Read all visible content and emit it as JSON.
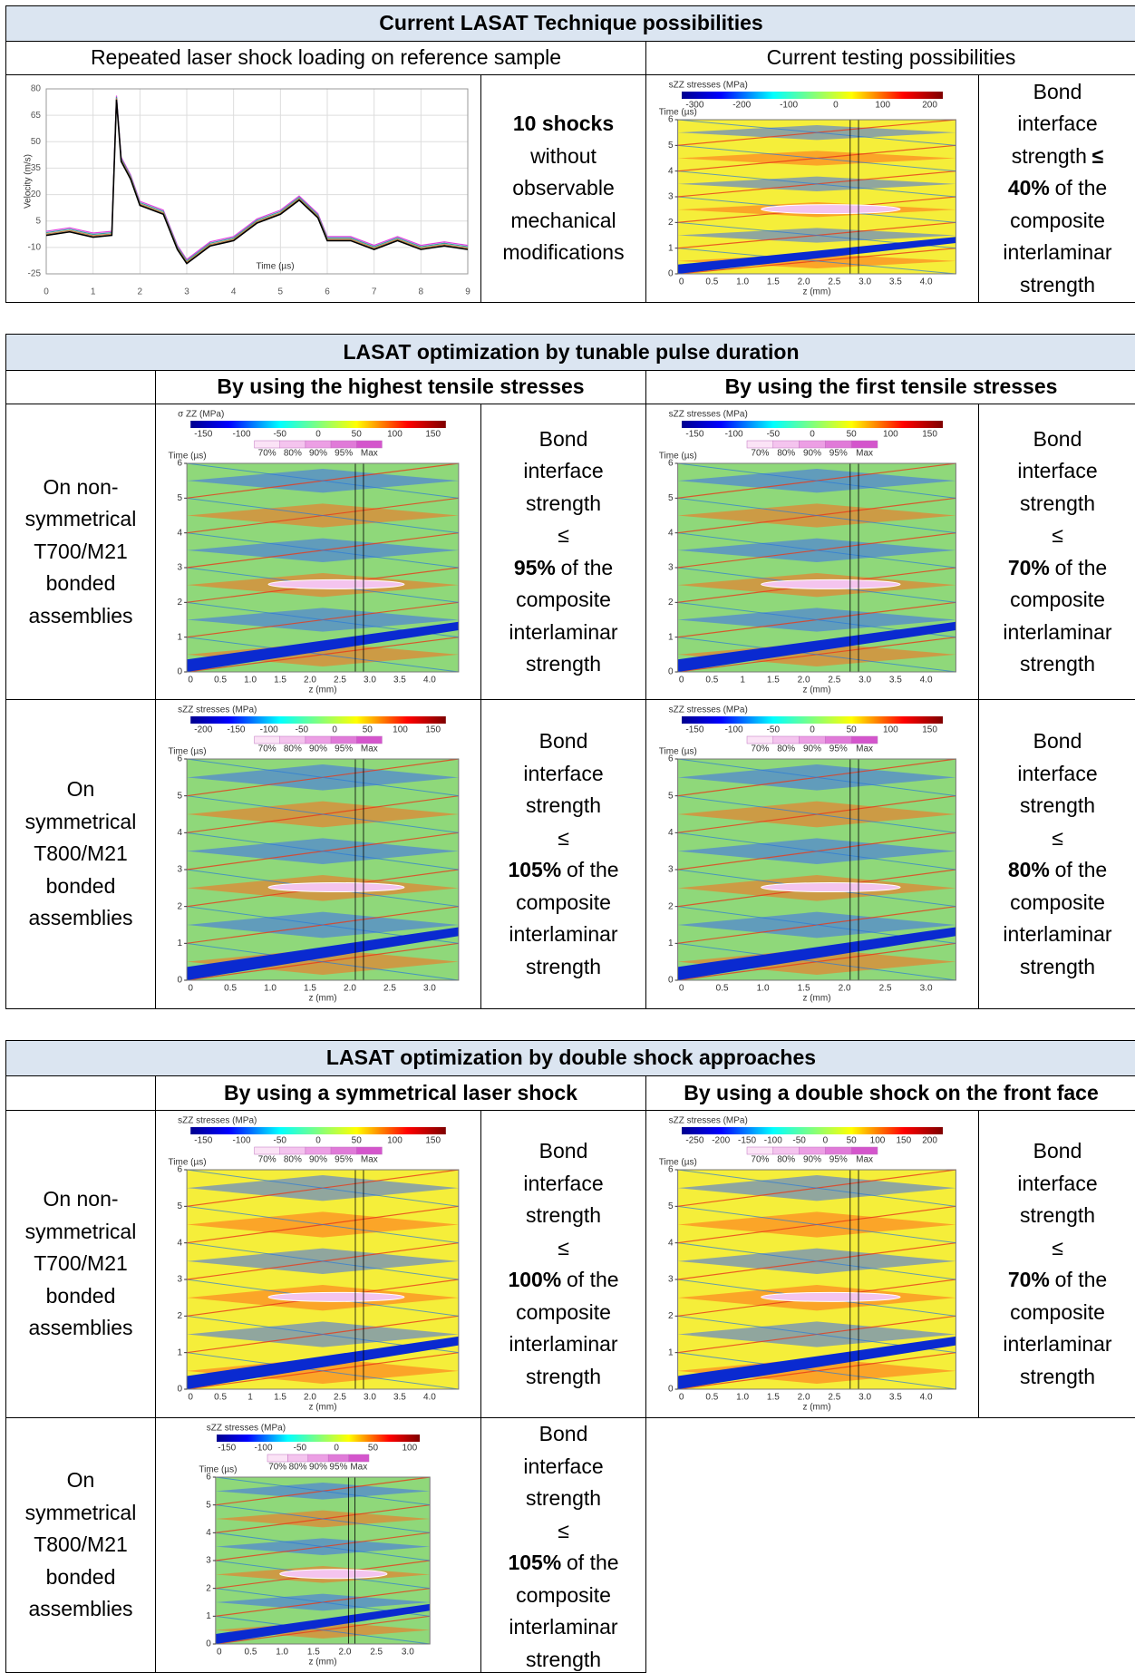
{
  "t1": {
    "title": "Current LASAT Technique possibilities",
    "left_heading": "Repeated laser shock loading on reference sample",
    "right_heading": "Current testing possibilities",
    "velocity_plot": {
      "y_label": "Velocity (m/s)",
      "x_label": "Time (µs)",
      "ylim": [
        -25,
        80
      ],
      "xlim": [
        0,
        9
      ],
      "yticks": [
        80,
        65,
        50,
        35,
        20,
        5,
        -10,
        -25
      ],
      "xticks": [
        0,
        1,
        2,
        3,
        4,
        5,
        6,
        7,
        8,
        9
      ],
      "x": [
        0,
        0.5,
        1,
        1.4,
        1.5,
        1.6,
        1.8,
        2,
        2.5,
        2.8,
        3,
        3.5,
        4,
        4.5,
        5,
        5.4,
        5.8,
        6,
        6.5,
        7,
        7.5,
        8,
        8.5,
        9
      ],
      "values": [
        -2,
        0,
        -3,
        -2,
        75,
        40,
        30,
        15,
        10,
        -10,
        -18,
        -8,
        -5,
        5,
        10,
        18,
        8,
        -5,
        -5,
        -10,
        -5,
        -10,
        -8,
        -10
      ]
    },
    "result": [
      [
        {
          "bold": "10 shocks"
        }
      ],
      [
        "without"
      ],
      [
        "observable"
      ],
      [
        "mechanical"
      ],
      [
        "modifications"
      ]
    ],
    "stress_plot": {
      "cbar_title": "sZZ stresses (MPa)",
      "cbar_ticks": [
        "-300",
        "-200",
        "-100",
        "0",
        "100",
        "200"
      ],
      "y_label": "Time (µs)",
      "yticks": [
        0,
        1,
        2,
        3,
        4,
        5,
        6
      ],
      "x_label": "z (mm)",
      "xticks": [
        "0",
        "0.5",
        "1.0",
        "1.5",
        "2.0",
        "2.5",
        "3.0",
        "3.5",
        "4.0"
      ]
    },
    "strength": [
      [
        "Bond"
      ],
      [
        "interface"
      ],
      [
        "strength",
        {
          "bold": "≤"
        }
      ],
      [
        {
          "bold": "40%"
        },
        "of the"
      ],
      [
        "composite"
      ],
      [
        "interlaminar"
      ],
      [
        "strength"
      ]
    ]
  },
  "t2": {
    "title": "LASAT optimization by tunable pulse duration",
    "col1": "By using the highest tensile stresses",
    "col2": "By using the first tensile stresses",
    "rows": [
      {
        "label": [
          [
            "On non-"
          ],
          [
            "symmetrical"
          ],
          [
            "T700/M21"
          ],
          [
            "bonded"
          ],
          [
            "assemblies"
          ]
        ],
        "plot1": {
          "cbar_title": "σ ZZ (MPa)",
          "cbar_ticks": [
            "-150",
            "-100",
            "-50",
            "0",
            "50",
            "100",
            "150"
          ],
          "pct": [
            "70%",
            "80%",
            "90%",
            "95%",
            "Max"
          ],
          "y_label": "Time (µs)",
          "yticks": [
            0,
            1,
            2,
            3,
            4,
            5,
            6
          ],
          "x_label": "z (mm)",
          "xticks": [
            "0",
            "0.5",
            "1.0",
            "1.5",
            "2.0",
            "2.5",
            "3.0",
            "3.5",
            "4.0"
          ]
        },
        "text1": [
          [
            "Bond"
          ],
          [
            "interface"
          ],
          [
            "strength"
          ],
          [
            "≤"
          ],
          [
            {
              "bold": "95%"
            },
            "of the"
          ],
          [
            "composite"
          ],
          [
            "interlaminar"
          ],
          [
            "strength"
          ]
        ],
        "plot2": {
          "cbar_title": "sZZ stresses (MPa)",
          "cbar_ticks": [
            "-150",
            "-100",
            "-50",
            "0",
            "50",
            "100",
            "150"
          ],
          "pct": [
            "70%",
            "80%",
            "90%",
            "95%",
            "Max"
          ],
          "y_label": "Time (µs)",
          "yticks": [
            0,
            1,
            2,
            3,
            4,
            5,
            6
          ],
          "x_label": "z (mm)",
          "xticks": [
            "0",
            "0.5",
            "1",
            "1.5",
            "2.0",
            "2.5",
            "3.0",
            "3.5",
            "4.0"
          ]
        },
        "text2": [
          [
            "Bond"
          ],
          [
            "interface"
          ],
          [
            "strength"
          ],
          [
            "≤"
          ],
          [
            {
              "bold": "70%"
            },
            "of the"
          ],
          [
            "composite"
          ],
          [
            "interlaminar"
          ],
          [
            "strength"
          ]
        ]
      },
      {
        "label": [
          [
            "On"
          ],
          [
            "symmetrical"
          ],
          [
            "T800/M21"
          ],
          [
            "bonded"
          ],
          [
            "assemblies"
          ]
        ],
        "plot1": {
          "cbar_title": "sZZ stresses (MPa)",
          "cbar_ticks": [
            "-200",
            "-150",
            "-100",
            "-50",
            "0",
            "50",
            "100",
            "150"
          ],
          "pct": [
            "70%",
            "80%",
            "90%",
            "95%",
            "Max"
          ],
          "y_label": "Time (µs)",
          "yticks": [
            0,
            1,
            2,
            3,
            4,
            5,
            6
          ],
          "x_label": "z (mm)",
          "xticks": [
            "0",
            "0.5",
            "1.0",
            "1.5",
            "2.0",
            "2.5",
            "3.0"
          ]
        },
        "text1": [
          [
            "Bond"
          ],
          [
            "interface"
          ],
          [
            "strength"
          ],
          [
            "≤"
          ],
          [
            {
              "bold": "105%"
            },
            "of the"
          ],
          [
            "composite"
          ],
          [
            "interlaminar"
          ],
          [
            "strength"
          ]
        ],
        "plot2": {
          "cbar_title": "sZZ stresses (MPa)",
          "cbar_ticks": [
            "-150",
            "-100",
            "-50",
            "0",
            "50",
            "100",
            "150"
          ],
          "pct": [
            "70%",
            "80%",
            "90%",
            "95%",
            "Max"
          ],
          "y_label": "Time (µs)",
          "yticks": [
            0,
            1,
            2,
            3,
            4,
            5,
            6
          ],
          "x_label": "z (mm)",
          "xticks": [
            "0",
            "0.5",
            "1.0",
            "1.5",
            "2.0",
            "2.5",
            "3.0"
          ]
        },
        "text2": [
          [
            "Bond"
          ],
          [
            "interface"
          ],
          [
            "strength"
          ],
          [
            "≤"
          ],
          [
            {
              "bold": "80%"
            },
            "of the"
          ],
          [
            "composite"
          ],
          [
            "interlaminar"
          ],
          [
            "strength"
          ]
        ]
      }
    ]
  },
  "t3": {
    "title": "LASAT optimization by double shock approaches",
    "col1": "By using a symmetrical laser shock",
    "col2": "By using a double shock on the front face",
    "rows": [
      {
        "label": [
          [
            "On non-"
          ],
          [
            "symmetrical"
          ],
          [
            "T700/M21"
          ],
          [
            "bonded"
          ],
          [
            "assemblies"
          ]
        ],
        "plot1": {
          "cbar_title": "sZZ stresses (MPa)",
          "cbar_ticks": [
            "-150",
            "-100",
            "-50",
            "0",
            "50",
            "100",
            "150"
          ],
          "pct": [
            "70%",
            "80%",
            "90%",
            "95%",
            "Max"
          ],
          "y_label": "Time (µs)",
          "yticks": [
            0,
            1,
            2,
            3,
            4,
            5,
            6
          ],
          "x_label": "z (mm)",
          "xticks": [
            "0",
            "0.5",
            "1",
            "1.5",
            "2.0",
            "2.5",
            "3.0",
            "3.5",
            "4.0"
          ]
        },
        "text1": [
          [
            "Bond"
          ],
          [
            "interface"
          ],
          [
            "strength"
          ],
          [
            "≤"
          ],
          [
            {
              "bold": "100%"
            },
            "of the"
          ],
          [
            "composite"
          ],
          [
            "interlaminar"
          ],
          [
            "strength"
          ]
        ],
        "plot2": {
          "cbar_title": "sZZ stresses (MPa)",
          "cbar_ticks": [
            "-250",
            "-200",
            "-150",
            "-100",
            "-50",
            "0",
            "50",
            "100",
            "150",
            "200"
          ],
          "pct": [
            "70%",
            "80%",
            "90%",
            "95%",
            "Max"
          ],
          "y_label": "Time (µs)",
          "yticks": [
            0,
            1,
            2,
            3,
            4,
            5,
            6
          ],
          "x_label": "z (mm)",
          "xticks": [
            "0",
            "0.5",
            "1.0",
            "1.5",
            "2.0",
            "2.5",
            "3.0",
            "3.5",
            "4.0"
          ]
        },
        "text2": [
          [
            "Bond"
          ],
          [
            "interface"
          ],
          [
            "strength"
          ],
          [
            "≤"
          ],
          [
            {
              "bold": "70%"
            },
            "of the"
          ],
          [
            "composite"
          ],
          [
            "interlaminar"
          ],
          [
            "strength"
          ]
        ]
      },
      {
        "label": [
          [
            "On"
          ],
          [
            "symmetrical"
          ],
          [
            "T800/M21"
          ],
          [
            "bonded"
          ],
          [
            "assemblies"
          ]
        ],
        "plot1": {
          "cbar_title": "sZZ stresses (MPa)",
          "cbar_ticks": [
            "-150",
            "-100",
            "-50",
            "0",
            "50",
            "100"
          ],
          "pct": [
            "70%",
            "80%",
            "90%",
            "95%",
            "Max"
          ],
          "y_label": "Time (µs)",
          "yticks": [
            0,
            1,
            2,
            3,
            4,
            5,
            6
          ],
          "x_label": "z (mm)",
          "xticks": [
            "0",
            "0.5",
            "1.0",
            "1.5",
            "2.0",
            "2.5",
            "3.0"
          ]
        },
        "text1": [
          [
            "Bond"
          ],
          [
            "interface"
          ],
          [
            "strength"
          ],
          [
            "≤"
          ],
          [
            {
              "bold": "105%"
            },
            "of the"
          ],
          [
            "composite"
          ],
          [
            "interlaminar"
          ],
          [
            "strength"
          ]
        ]
      }
    ]
  }
}
